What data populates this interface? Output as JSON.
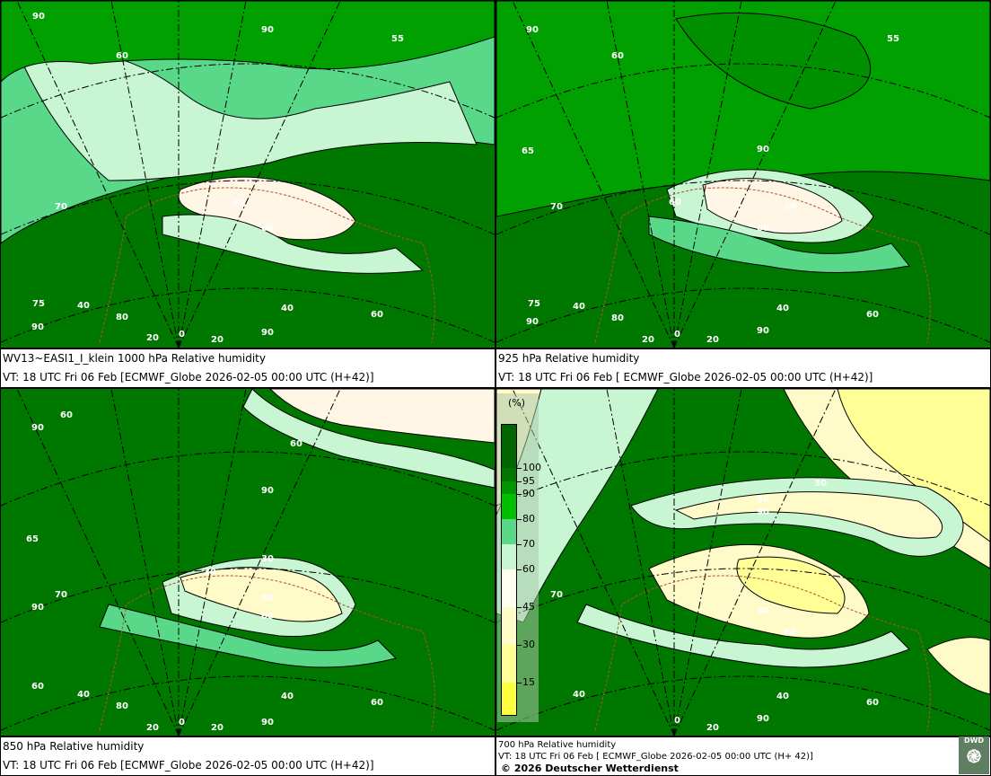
{
  "panels": [
    {
      "title": "WV13~EASI1_I_klein 1000 hPa Relative humidity",
      "valid": "VT: 18 UTC Fri  06 Feb [ECMWF_Globe 2026-02-05 00:00 UTC  (H+42)]",
      "labels": [
        [
          "90",
          35,
          20
        ],
        [
          "90",
          290,
          35
        ],
        [
          "55",
          435,
          45
        ],
        [
          "60",
          128,
          64
        ],
        [
          "70",
          60,
          232
        ],
        [
          "60",
          258,
          228
        ],
        [
          "60",
          290,
          256
        ],
        [
          "75",
          35,
          340
        ],
        [
          "40",
          85,
          342
        ],
        [
          "80",
          128,
          355
        ],
        [
          "40",
          312,
          345
        ],
        [
          "60",
          412,
          352
        ],
        [
          "90",
          34,
          366
        ],
        [
          "20",
          162,
          378
        ],
        [
          "0",
          198,
          374
        ],
        [
          "20",
          234,
          380
        ],
        [
          "90",
          290,
          372
        ]
      ]
    },
    {
      "title": "925 hPa Relative humidity",
      "valid": "VT: 18 UTC Fri  06 Feb [ ECMWF_Globe 2026-02-05 00:00 UTC  (H+42)]",
      "labels": [
        [
          "90",
          33,
          35
        ],
        [
          "55",
          435,
          45
        ],
        [
          "60",
          128,
          64
        ],
        [
          "65",
          28,
          170
        ],
        [
          "90",
          290,
          168
        ],
        [
          "70",
          60,
          232
        ],
        [
          "60",
          192,
          227
        ],
        [
          "30",
          320,
          232
        ],
        [
          "60",
          290,
          256
        ],
        [
          "75",
          35,
          340
        ],
        [
          "40",
          85,
          343
        ],
        [
          "80",
          128,
          356
        ],
        [
          "40",
          312,
          345
        ],
        [
          "60",
          412,
          352
        ],
        [
          "90",
          33,
          360
        ],
        [
          "20",
          162,
          380
        ],
        [
          "0",
          198,
          374
        ],
        [
          "20",
          234,
          380
        ],
        [
          "90",
          290,
          370
        ]
      ]
    },
    {
      "title": "850 hPa  Relative humidity",
      "valid": "VT: 18 UTC Fri  06 Feb [ECMWF_Globe 2026-02-05 00:00 UTC  (H+42)]",
      "labels": [
        [
          "60",
          66,
          32
        ],
        [
          "90",
          34,
          46
        ],
        [
          "60",
          322,
          64
        ],
        [
          "90",
          290,
          116
        ],
        [
          "65",
          28,
          170
        ],
        [
          "70",
          60,
          232
        ],
        [
          "30",
          226,
          207
        ],
        [
          "30",
          290,
          192
        ],
        [
          "80",
          290,
          236
        ],
        [
          "60",
          290,
          256
        ],
        [
          "90",
          34,
          246
        ],
        [
          "60",
          34,
          334
        ],
        [
          "40",
          85,
          343
        ],
        [
          "80",
          128,
          356
        ],
        [
          "40",
          312,
          345
        ],
        [
          "60",
          412,
          352
        ],
        [
          "20",
          162,
          380
        ],
        [
          "0",
          198,
          374
        ],
        [
          "20",
          234,
          380
        ],
        [
          "90",
          290,
          374
        ]
      ]
    },
    {
      "title": "700 hPa Relative humidity",
      "valid": "VT: 18 UTC Fri  06 Feb [ ECMWF_Globe 2026-02-05 00:00 UTC  (H+ 42)]",
      "copyright": "© 2026 Deutscher Wetterdienst",
      "labels": [
        [
          "30",
          354,
          108
        ],
        [
          "60",
          290,
          126
        ],
        [
          "90",
          290,
          140
        ],
        [
          "70",
          60,
          232
        ],
        [
          "30",
          290,
          250
        ],
        [
          "60",
          320,
          274
        ],
        [
          "40",
          85,
          343
        ],
        [
          "40",
          312,
          345
        ],
        [
          "60",
          412,
          352
        ],
        [
          "0",
          198,
          372
        ],
        [
          "20",
          234,
          380
        ],
        [
          "90",
          290,
          370
        ]
      ]
    }
  ],
  "legend": {
    "unit": "(%)",
    "ticks": [
      "100",
      "95",
      "90",
      "80",
      "70",
      "60",
      "45",
      "30",
      "15"
    ],
    "colors": [
      "#006600",
      "#007800",
      "#009600",
      "#00c000",
      "#5ad88a",
      "#c8f5d2",
      "#fffff0",
      "#fffbc8",
      "#ffff96",
      "#ffff40"
    ]
  },
  "logo": "DWD"
}
